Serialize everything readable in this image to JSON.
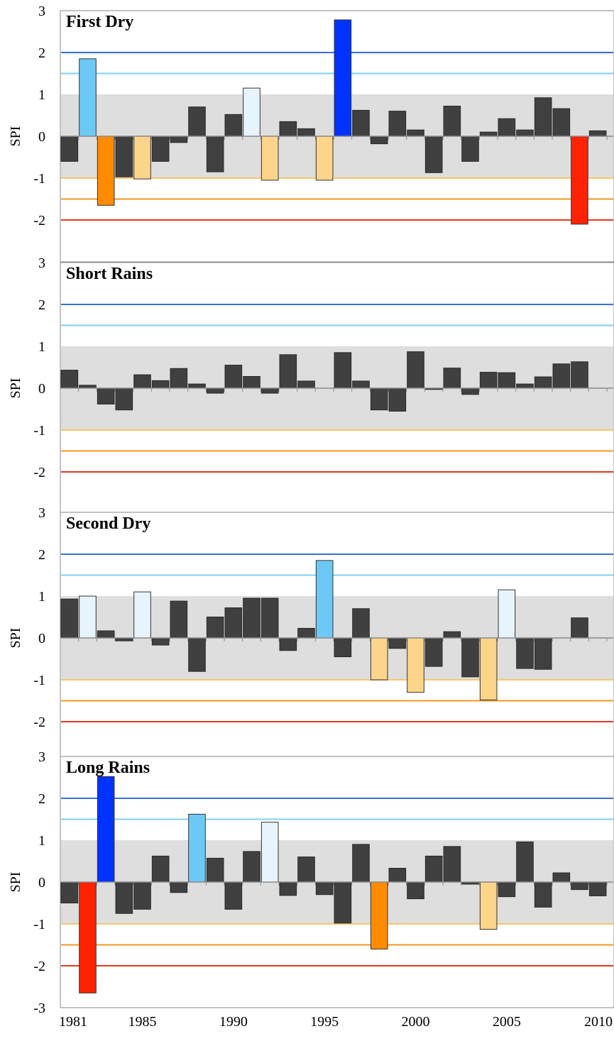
{
  "colors": {
    "normal_bar": "#404040",
    "normal_band": "#dedede",
    "extreme_wet": "#0033ff",
    "severe_wet": "#6cc9f5",
    "moderate_wet": "#e8f4fb",
    "moderate_dry": "#fdd58a",
    "severe_dry": "#ff8c00",
    "extreme_dry": "#ff2200",
    "line_2": "#3a6fd8",
    "line_1_5": "#7fd0f0",
    "line_m1": "#f7c76a",
    "line_m1_5": "#f0981e",
    "line_m2": "#e53a1e"
  },
  "chart_data": [
    {
      "type": "bar",
      "title": "First Dry",
      "ylabel": "SPI",
      "ylim": [
        -3,
        3
      ],
      "y_ticks": [
        "3",
        "2",
        "1",
        "0",
        "-1",
        "-2"
      ],
      "reference_lines": [
        2,
        1.5,
        -1,
        -1.5,
        -2
      ],
      "x": [
        1981,
        1982,
        1983,
        1984,
        1985,
        1986,
        1987,
        1988,
        1989,
        1990,
        1991,
        1992,
        1993,
        1994,
        1995,
        1996,
        1997,
        1998,
        1999,
        2000,
        2001,
        2002,
        2003,
        2004,
        2005,
        2006,
        2007,
        2008,
        2009,
        2010
      ],
      "values": [
        -0.6,
        1.85,
        -1.65,
        -0.97,
        -1.02,
        -0.6,
        -0.15,
        0.7,
        -0.85,
        0.52,
        1.15,
        -1.05,
        0.35,
        0.18,
        -1.05,
        2.78,
        0.62,
        -0.18,
        0.6,
        0.15,
        -0.87,
        0.72,
        -0.6,
        0.1,
        0.42,
        0.15,
        0.92,
        0.66,
        -2.1,
        0.13
      ]
    },
    {
      "type": "bar",
      "title": "Short Rains",
      "ylabel": "SPI",
      "ylim": [
        -3,
        3
      ],
      "y_ticks": [
        "3",
        "2",
        "1",
        "0",
        "-1",
        "-2"
      ],
      "reference_lines": [
        2,
        1.5,
        -1,
        -1.5,
        -2
      ],
      "x": [
        1981,
        1982,
        1983,
        1984,
        1985,
        1986,
        1987,
        1988,
        1989,
        1990,
        1991,
        1992,
        1993,
        1994,
        1995,
        1996,
        1997,
        1998,
        1999,
        2000,
        2001,
        2002,
        2003,
        2004,
        2005,
        2006,
        2007,
        2008,
        2009,
        2010
      ],
      "values": [
        0.43,
        0.07,
        -0.38,
        -0.52,
        0.32,
        0.18,
        0.47,
        0.1,
        -0.12,
        0.55,
        0.28,
        -0.12,
        0.8,
        0.17,
        0.0,
        0.85,
        0.17,
        -0.52,
        -0.55,
        0.87,
        -0.03,
        0.48,
        -0.15,
        0.38,
        0.37,
        0.1,
        0.27,
        0.58,
        0.63,
        0.0
      ]
    },
    {
      "type": "bar",
      "title": "Second Dry",
      "ylabel": "SPI",
      "ylim": [
        -3,
        3
      ],
      "y_ticks": [
        "3",
        "2",
        "1",
        "0",
        "-1",
        "-2"
      ],
      "reference_lines": [
        2,
        1.5,
        -1,
        -1.5,
        -2
      ],
      "x": [
        1981,
        1982,
        1983,
        1984,
        1985,
        1986,
        1987,
        1988,
        1989,
        1990,
        1991,
        1992,
        1993,
        1994,
        1995,
        1996,
        1997,
        1998,
        1999,
        2000,
        2001,
        2002,
        2003,
        2004,
        2005,
        2006,
        2007,
        2008,
        2009,
        2010
      ],
      "values": [
        0.93,
        1.0,
        0.17,
        -0.07,
        1.1,
        -0.17,
        0.88,
        -0.8,
        0.5,
        0.72,
        0.95,
        0.95,
        -0.3,
        0.23,
        1.85,
        -0.45,
        0.7,
        -1.0,
        -0.25,
        -1.3,
        -0.68,
        0.15,
        -0.93,
        -1.48,
        1.15,
        -0.73,
        -0.75,
        0.0,
        0.48,
        0.0
      ]
    },
    {
      "type": "bar",
      "title": "Long Rains",
      "ylabel": "SPI",
      "ylim": [
        -3,
        3
      ],
      "y_ticks": [
        "3",
        "2",
        "1",
        "0",
        "-1",
        "-2",
        "-3"
      ],
      "reference_lines": [
        2,
        1.5,
        -1,
        -1.5,
        -2
      ],
      "x_ticks": [
        "1981",
        "1985",
        "1990",
        "1995",
        "2000",
        "2005",
        "2010"
      ],
      "x": [
        1981,
        1982,
        1983,
        1984,
        1985,
        1986,
        1987,
        1988,
        1989,
        1990,
        1991,
        1992,
        1993,
        1994,
        1995,
        1996,
        1997,
        1998,
        1999,
        2000,
        2001,
        2002,
        2003,
        2004,
        2005,
        2006,
        2007,
        2008,
        2009,
        2010
      ],
      "values": [
        -0.5,
        -2.65,
        2.52,
        -0.75,
        -0.65,
        0.62,
        -0.25,
        1.62,
        0.57,
        -0.65,
        0.73,
        1.43,
        -0.32,
        0.6,
        -0.3,
        -0.98,
        0.9,
        -1.6,
        0.33,
        -0.4,
        0.62,
        0.85,
        -0.05,
        -1.13,
        -0.35,
        0.96,
        -0.6,
        0.22,
        -0.18,
        -0.33
      ]
    }
  ]
}
